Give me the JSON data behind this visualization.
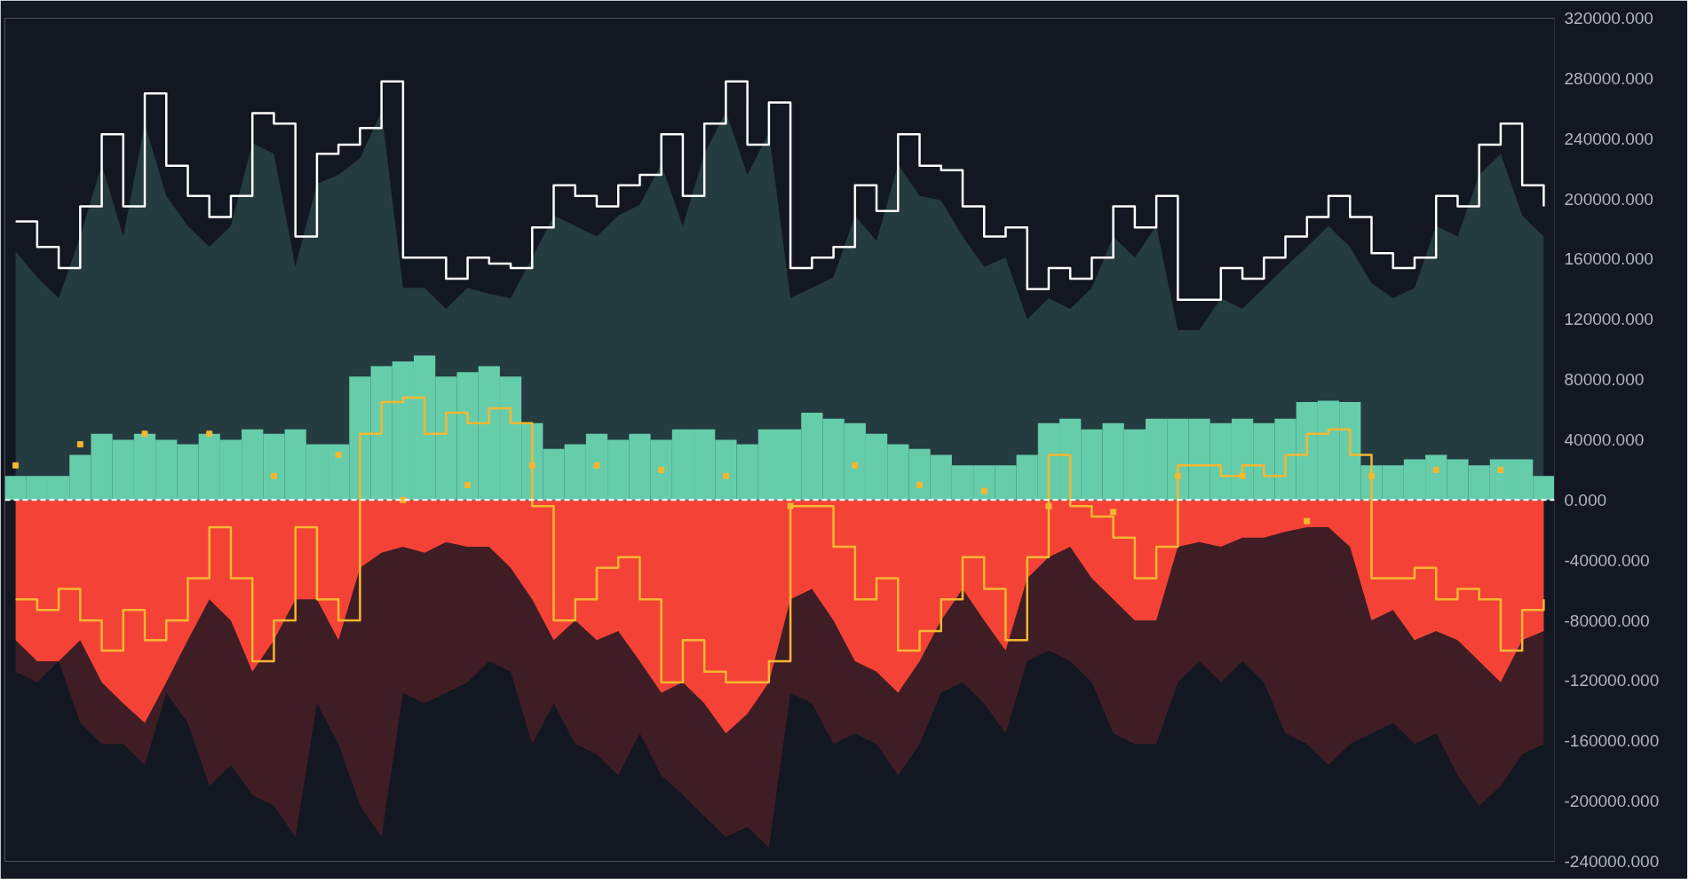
{
  "chart_data": {
    "type": "area",
    "categories": [
      null,
      null,
      null,
      null,
      null,
      null,
      null,
      null,
      null,
      null,
      null,
      null,
      null,
      null,
      null,
      null,
      null,
      null,
      null,
      null,
      null,
      null,
      null,
      null,
      null,
      null,
      null,
      null,
      null,
      null,
      null,
      null,
      null,
      null,
      null,
      null,
      null,
      null,
      null,
      null,
      null,
      null,
      null,
      null,
      null,
      null,
      null,
      null,
      null,
      null,
      null,
      null,
      null,
      null,
      null,
      null,
      null,
      null,
      null,
      null,
      null,
      null,
      null,
      null,
      null,
      null,
      null,
      null,
      null,
      null,
      null,
      null
    ],
    "series": [
      {
        "color": "#3f1d24",
        "values": [
          -114000,
          -121000,
          -107000,
          -148000,
          -162000,
          -162000,
          -176000,
          -128000,
          -148000,
          -190000,
          -176000,
          -196000,
          -203000,
          -224000,
          -135000,
          -162000,
          -203000,
          -224000,
          -128000,
          -135000,
          -128000,
          -121000,
          -107000,
          -114000,
          -162000,
          -135000,
          -162000,
          -169000,
          -183000,
          -155000,
          -183000,
          -196000,
          -210000,
          -224000,
          -217000,
          -231000,
          -128000,
          -135000,
          -162000,
          -155000,
          -162000,
          -183000,
          -162000,
          -128000,
          -121000,
          -135000,
          -155000,
          -107000,
          -100000,
          -107000,
          -121000,
          -155000,
          -162000,
          -162000,
          -121000,
          -107000,
          -121000,
          -107000,
          -121000,
          -155000,
          -162000,
          -176000,
          -162000,
          -155000,
          -148000,
          -162000,
          -155000,
          -183000,
          -203000,
          -190000,
          -169000,
          -162000
        ]
      },
      {
        "color": "#f44336",
        "values": [
          -93000,
          -107000,
          -107000,
          -93000,
          -121000,
          -135000,
          -148000,
          -121000,
          -93000,
          -66000,
          -80000,
          -114000,
          -93000,
          -66000,
          -66000,
          -93000,
          -45000,
          -35000,
          -31000,
          -35000,
          -28000,
          -31000,
          -31000,
          -45000,
          -66000,
          -93000,
          -80000,
          -93000,
          -87000,
          -107000,
          -128000,
          -121000,
          -135000,
          -155000,
          -142000,
          -121000,
          -66000,
          -59000,
          -80000,
          -107000,
          -114000,
          -128000,
          -107000,
          -80000,
          -59000,
          -80000,
          -100000,
          -52000,
          -38000,
          -31000,
          -52000,
          -66000,
          -80000,
          -80000,
          -31000,
          -28000,
          -31000,
          -25000,
          -25000,
          -21000,
          -18000,
          -18000,
          -31000,
          -80000,
          -73000,
          -93000,
          -87000,
          -93000,
          -107000,
          -121000,
          -93000,
          -87000
        ]
      },
      {
        "color": "#243b3f",
        "values": [
          165000,
          148000,
          134000,
          175000,
          223000,
          175000,
          250000,
          202000,
          182000,
          168000,
          182000,
          237000,
          230000,
          155000,
          210000,
          216000,
          227000,
          258000,
          141000,
          141000,
          127000,
          141000,
          137000,
          134000,
          161000,
          189000,
          182000,
          175000,
          189000,
          196000,
          223000,
          182000,
          230000,
          258000,
          216000,
          244000,
          134000,
          141000,
          148000,
          189000,
          172000,
          223000,
          202000,
          199000,
          175000,
          155000,
          161000,
          120000,
          134000,
          127000,
          141000,
          175000,
          161000,
          182000,
          113000,
          113000,
          134000,
          127000,
          141000,
          155000,
          168000,
          182000,
          168000,
          144000,
          134000,
          141000,
          182000,
          175000,
          216000,
          230000,
          189000,
          175000
        ]
      },
      {
        "type": "bar",
        "color": "#66cdaa",
        "values": [
          16000,
          16000,
          16000,
          30000,
          44000,
          40000,
          44000,
          40000,
          37000,
          44000,
          40000,
          47000,
          44000,
          47000,
          37000,
          37000,
          82000,
          89000,
          92000,
          96000,
          82000,
          85000,
          89000,
          82000,
          51000,
          34000,
          37000,
          44000,
          40000,
          44000,
          40000,
          47000,
          47000,
          40000,
          37000,
          47000,
          47000,
          58000,
          54000,
          51000,
          44000,
          37000,
          34000,
          30000,
          23000,
          23000,
          23000,
          30000,
          51000,
          54000,
          47000,
          51000,
          47000,
          54000,
          54000,
          54000,
          51000,
          54000,
          51000,
          54000,
          65000,
          66000,
          65000,
          23000,
          23000,
          27000,
          30000,
          27000,
          23000,
          27000,
          27000,
          16000
        ]
      },
      {
        "type": "step",
        "color": "#ffffff",
        "values": [
          185000,
          168000,
          154000,
          195000,
          243000,
          195000,
          270000,
          222000,
          202000,
          188000,
          202000,
          257000,
          250000,
          175000,
          230000,
          236000,
          247000,
          278000,
          161000,
          161000,
          147000,
          161000,
          157000,
          154000,
          181000,
          209000,
          202000,
          195000,
          209000,
          216000,
          243000,
          202000,
          250000,
          278000,
          236000,
          264000,
          154000,
          161000,
          168000,
          209000,
          192000,
          243000,
          222000,
          219000,
          195000,
          175000,
          181000,
          140000,
          154000,
          147000,
          161000,
          195000,
          181000,
          202000,
          133000,
          133000,
          154000,
          147000,
          161000,
          175000,
          188000,
          202000,
          188000,
          164000,
          154000,
          161000,
          202000,
          195000,
          236000,
          250000,
          209000,
          195000
        ]
      },
      {
        "type": "step",
        "color": "#f5b731",
        "values": [
          -66000,
          -73000,
          -59000,
          -80000,
          -100000,
          -73000,
          -93000,
          -80000,
          -52000,
          -18000,
          -52000,
          -107000,
          -80000,
          -18000,
          -66000,
          -80000,
          44000,
          65000,
          68000,
          44000,
          58000,
          51000,
          61000,
          51000,
          -4000,
          -80000,
          -66000,
          -45000,
          -38000,
          -66000,
          -121000,
          -93000,
          -114000,
          -121000,
          -121000,
          -107000,
          -4000,
          -4000,
          -31000,
          -66000,
          -52000,
          -100000,
          -87000,
          -66000,
          -38000,
          -59000,
          -93000,
          -38000,
          30000,
          -4000,
          -11000,
          -25000,
          -52000,
          -31000,
          23000,
          23000,
          16000,
          23000,
          16000,
          30000,
          44000,
          47000,
          30000,
          -52000,
          -52000,
          -45000,
          -66000,
          -59000,
          -66000,
          -100000,
          -73000,
          -66000
        ]
      },
      {
        "type": "scatter",
        "color": "#f5b731",
        "marker": "square",
        "values": [
          23000,
          null,
          null,
          37000,
          null,
          null,
          44000,
          null,
          null,
          44000,
          null,
          null,
          16000,
          null,
          null,
          30000,
          null,
          null,
          0,
          null,
          null,
          10000,
          null,
          null,
          23000,
          null,
          null,
          23000,
          null,
          null,
          20000,
          null,
          null,
          16000,
          null,
          null,
          -4000,
          null,
          null,
          23000,
          null,
          null,
          10000,
          null,
          null,
          6000,
          null,
          null,
          -4000,
          null,
          null,
          -8000,
          null,
          null,
          16000,
          null,
          null,
          16000,
          null,
          null,
          -14000,
          null,
          null,
          16000,
          null,
          null,
          20000,
          null,
          null,
          20000,
          null,
          null
        ]
      }
    ],
    "ylim": [
      -240000,
      320000
    ],
    "yticks": [
      {
        "value": -240000,
        "label": "-240000.000"
      },
      {
        "value": -200000,
        "label": "-200000.000"
      },
      {
        "value": -160000,
        "label": "-160000.000"
      },
      {
        "value": -120000,
        "label": "-120000.000"
      },
      {
        "value": -80000,
        "label": "-80000.000"
      },
      {
        "value": -40000,
        "label": "-40000.000"
      },
      {
        "value": 0,
        "label": "0.000"
      },
      {
        "value": 40000,
        "label": "40000.000"
      },
      {
        "value": 80000,
        "label": "80000.000"
      },
      {
        "value": 120000,
        "label": "120000.000"
      },
      {
        "value": 160000,
        "label": "160000.000"
      },
      {
        "value": 200000,
        "label": "200000.000"
      },
      {
        "value": 240000,
        "label": "240000.000"
      },
      {
        "value": 280000,
        "label": "280000.000"
      },
      {
        "value": 320000,
        "label": "320000.000"
      }
    ],
    "ref_lines": [
      {
        "axis": "y",
        "value": 0,
        "color": "#ffffff",
        "line_style": "dashed"
      }
    ],
    "tick_labels": "y",
    "grid": false
  }
}
